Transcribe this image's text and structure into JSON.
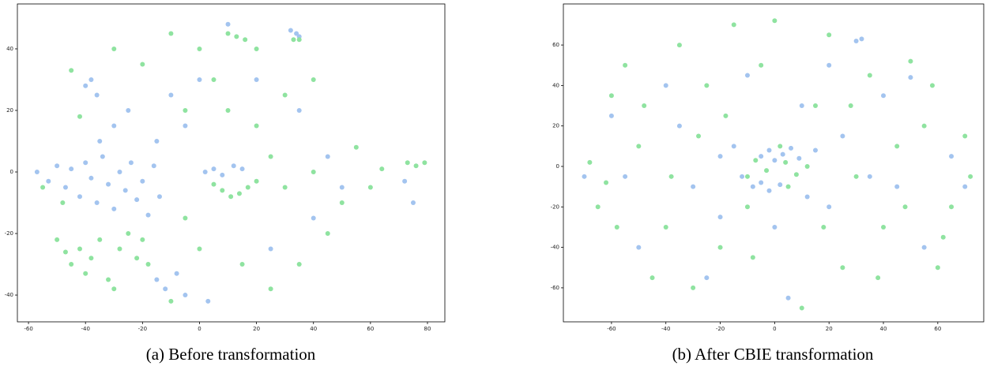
{
  "chart_data": [
    {
      "type": "scatter",
      "caption": "(a) Before transformation",
      "xlim": [
        -63.9,
        86.1
      ],
      "ylim": [
        -48.7,
        54.6
      ],
      "xticks": [
        -60,
        -40,
        -20,
        0,
        20,
        40,
        60,
        80
      ],
      "yticks": [
        -40,
        -20,
        0,
        20,
        40
      ],
      "series": [
        {
          "color": "#a3c4ef",
          "x": [
            -57,
            -53,
            -50,
            -47,
            -45,
            -42,
            -40,
            -38,
            -36,
            -34,
            -32,
            -30,
            -28,
            -26,
            -24,
            -22,
            -20,
            -18,
            -16,
            -14,
            -40,
            -38,
            -36,
            -30,
            -35,
            -25,
            -15,
            -10,
            2,
            5,
            8,
            12,
            15,
            32,
            34,
            35,
            -15,
            -12,
            -8,
            3,
            -5,
            25,
            40,
            50,
            75,
            72,
            10,
            20,
            35,
            45,
            -5,
            0
          ],
          "y": [
            0,
            -3,
            2,
            -5,
            1,
            -8,
            3,
            -2,
            -10,
            5,
            -4,
            -12,
            0,
            -6,
            3,
            -9,
            -3,
            -14,
            2,
            -8,
            28,
            30,
            25,
            15,
            10,
            20,
            10,
            25,
            0,
            1,
            -1,
            2,
            1,
            46,
            45,
            44,
            -35,
            -38,
            -33,
            -42,
            -40,
            -25,
            -15,
            -5,
            -10,
            -3,
            48,
            30,
            20,
            5,
            15,
            30
          ]
        },
        {
          "color": "#8fe3a0",
          "x": [
            -50,
            -47,
            -45,
            -42,
            -40,
            -38,
            -35,
            -32,
            -30,
            -28,
            -25,
            -22,
            -20,
            -18,
            5,
            8,
            11,
            14,
            17,
            20,
            10,
            13,
            16,
            33,
            35,
            73,
            76,
            79,
            -45,
            -42,
            -30,
            -20,
            -10,
            0,
            5,
            -5,
            10,
            20,
            25,
            30,
            40,
            50,
            60,
            64,
            55,
            45,
            35,
            25,
            15,
            0,
            -5,
            -10,
            -48,
            -55,
            30,
            40,
            20
          ],
          "y": [
            -22,
            -26,
            -30,
            -25,
            -33,
            -28,
            -22,
            -35,
            -38,
            -25,
            -20,
            -28,
            -22,
            -30,
            -4,
            -6,
            -8,
            -7,
            -5,
            -3,
            45,
            44,
            43,
            43,
            43,
            3,
            2,
            3,
            33,
            18,
            40,
            35,
            45,
            40,
            30,
            20,
            20,
            15,
            5,
            -5,
            0,
            -10,
            -5,
            1,
            8,
            -20,
            -30,
            -38,
            -30,
            -25,
            -15,
            -42,
            -10,
            -5,
            25,
            30,
            40
          ]
        }
      ]
    },
    {
      "type": "scatter",
      "caption": "(b) After CBIE transformation",
      "xlim": [
        -77.7,
        76.9
      ],
      "ylim": [
        -76.8,
        80.3
      ],
      "xticks": [
        -60,
        -40,
        -20,
        0,
        20,
        40,
        60
      ],
      "yticks": [
        -60,
        -40,
        -20,
        0,
        20,
        40,
        60
      ],
      "series": [
        {
          "color": "#a3c4ef",
          "x": [
            -5,
            -2,
            0,
            3,
            6,
            9,
            -8,
            -5,
            -2,
            2,
            12,
            -12,
            15,
            -15,
            20,
            -20,
            25,
            30,
            32,
            -25,
            -55,
            -60,
            -40,
            40,
            50,
            55,
            -30,
            10,
            -10,
            65,
            70,
            -70,
            5,
            -20,
            35,
            0,
            -35,
            45,
            20,
            -50
          ],
          "y": [
            5,
            8,
            3,
            6,
            9,
            4,
            -10,
            -8,
            -12,
            -9,
            -15,
            -5,
            8,
            10,
            -20,
            -25,
            15,
            62,
            63,
            -55,
            -5,
            25,
            40,
            35,
            44,
            -40,
            -10,
            30,
            45,
            5,
            -10,
            -5,
            -65,
            5,
            -5,
            -30,
            20,
            -10,
            50,
            -40
          ]
        },
        {
          "color": "#8fe3a0",
          "x": [
            -68,
            -65,
            -60,
            -55,
            -50,
            -45,
            -40,
            -35,
            -30,
            -25,
            -20,
            -15,
            -10,
            -5,
            0,
            5,
            10,
            15,
            20,
            25,
            30,
            35,
            40,
            45,
            50,
            55,
            60,
            65,
            70,
            72,
            -3,
            4,
            8,
            -7,
            2,
            -10,
            12,
            -58,
            -48,
            -38,
            -28,
            -18,
            -8,
            18,
            28,
            38,
            48,
            58,
            -62,
            62
          ],
          "y": [
            2,
            -20,
            35,
            50,
            10,
            -55,
            -30,
            60,
            -60,
            40,
            -40,
            70,
            -20,
            50,
            72,
            -10,
            -70,
            30,
            65,
            -50,
            -5,
            45,
            -30,
            10,
            52,
            20,
            -50,
            -20,
            15,
            -5,
            -2,
            2,
            -4,
            3,
            10,
            -5,
            0,
            -30,
            30,
            -5,
            15,
            25,
            -45,
            -30,
            30,
            -55,
            -20,
            40,
            -8,
            -35
          ]
        }
      ]
    }
  ]
}
